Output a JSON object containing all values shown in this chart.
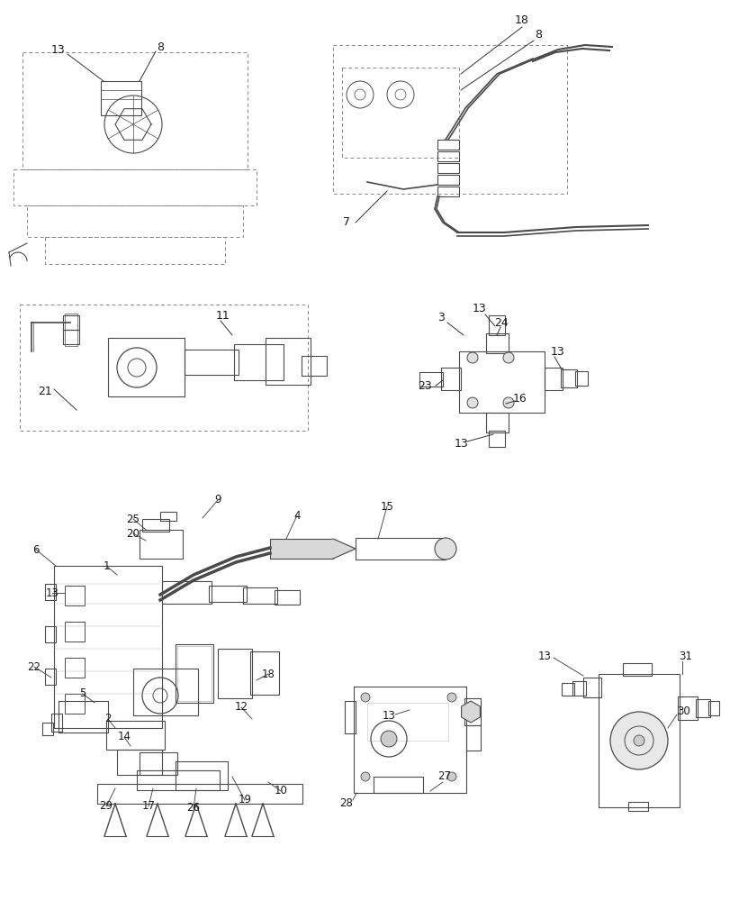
{
  "bg_color": "#ffffff",
  "line_color": "#4a4a4a",
  "dashed_color": "#7a7a7a",
  "label_color": "#1a1a1a"
}
